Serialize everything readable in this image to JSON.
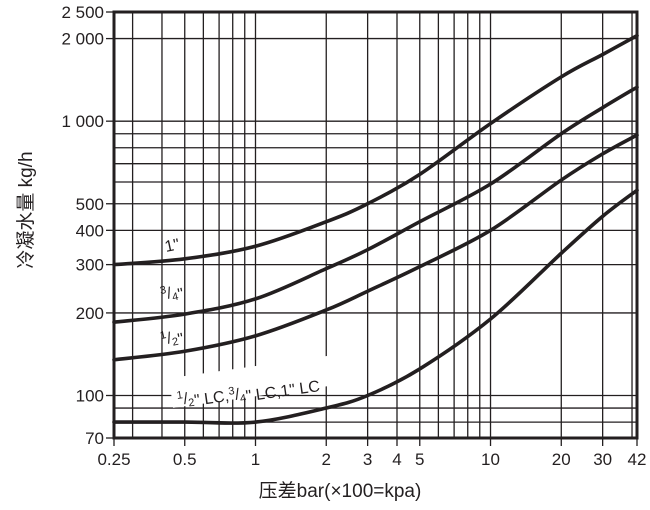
{
  "chart_data": {
    "type": "line",
    "title": "",
    "xlabel": "压差bar(×100=kpa)",
    "ylabel": "冷凝水量 kg/h",
    "xscale": "log",
    "yscale": "log",
    "xlim": [
      0.25,
      42
    ],
    "ylim": [
      70,
      2500
    ],
    "grid": true,
    "legend_position": "inline labels on curves",
    "x_ticks": [
      0.25,
      0.5,
      1,
      2,
      3,
      4,
      5,
      10,
      20,
      30,
      42
    ],
    "x_tick_labels": [
      "0.25",
      "0.5",
      "1",
      "2",
      "3",
      "4",
      "5",
      "10",
      "20",
      "30",
      "42"
    ],
    "y_ticks": [
      70,
      100,
      200,
      300,
      400,
      500,
      1000,
      2000,
      2500
    ],
    "y_tick_labels": [
      "70",
      "100",
      "200",
      "300",
      "400",
      "500",
      "1 000",
      "2 000",
      "2 500"
    ],
    "x_grid": [
      0.3,
      0.4,
      0.5,
      0.6,
      0.7,
      0.8,
      0.9,
      1,
      2,
      3,
      4,
      5,
      6,
      7,
      8,
      9,
      10,
      20,
      30,
      40
    ],
    "y_grid": [
      80,
      90,
      100,
      200,
      300,
      400,
      500,
      600,
      700,
      800,
      900,
      1000,
      2000
    ],
    "x": [
      0.25,
      0.5,
      1,
      2,
      3,
      5,
      10,
      20,
      30,
      42
    ],
    "series": [
      {
        "name": "1\"",
        "label_parts": [
          "1\""
        ],
        "values": [
          300,
          315,
          350,
          430,
          500,
          640,
          980,
          1450,
          1750,
          2050
        ]
      },
      {
        "name": "3/4\"",
        "label_parts": [
          "3",
          "/",
          "4",
          "\""
        ],
        "values": [
          185,
          198,
          225,
          290,
          340,
          430,
          590,
          900,
          1120,
          1330
        ]
      },
      {
        "name": "1/2\"",
        "label_parts": [
          "1",
          "/",
          "2",
          "\""
        ],
        "values": [
          135,
          145,
          165,
          205,
          240,
          295,
          400,
          610,
          760,
          890
        ]
      },
      {
        "name": "1/2\" LC, 3/4\" LC, 1\" LC",
        "label_parts": [
          "1",
          "/",
          "2",
          "\" LC,",
          "3",
          "/",
          "4",
          "\" LC,1\" LC"
        ],
        "values": [
          80,
          80,
          80,
          90,
          100,
          125,
          190,
          330,
          450,
          560
        ]
      }
    ]
  }
}
